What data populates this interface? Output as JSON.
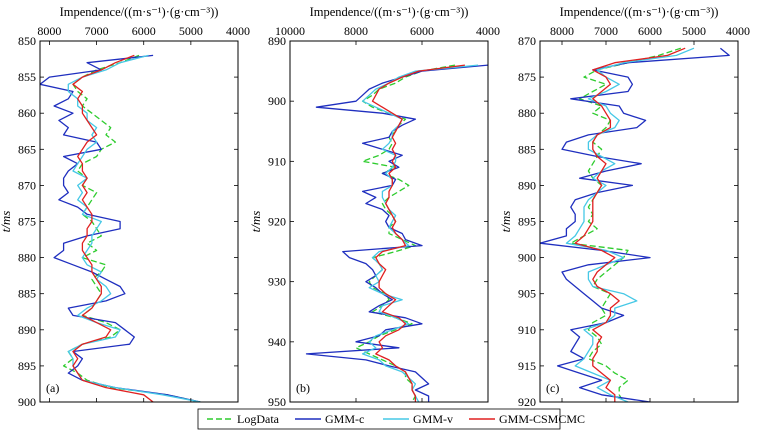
{
  "legend": [
    {
      "label": "LogData",
      "color": "#2ecc2e",
      "dash": "6,3",
      "width": 1.3
    },
    {
      "label": "GMM-c",
      "color": "#1f2fbf",
      "dash": "",
      "width": 1.3
    },
    {
      "label": "GMM-v",
      "color": "#46c8e6",
      "dash": "",
      "width": 1.3
    },
    {
      "label": "GMM-CSMCMC",
      "color": "#e02020",
      "dash": "",
      "width": 1.3
    }
  ],
  "chart_data": [
    {
      "type": "line",
      "panel_label": "(a)",
      "title": "Impendence/((m·s⁻¹)·(g·cm⁻³))",
      "ylabel": "t/ms",
      "xlim": [
        8200,
        4000
      ],
      "xticks": [
        8000,
        7000,
        6000,
        5000,
        4000
      ],
      "ylim": [
        850,
        900
      ],
      "yticks": [
        850,
        855,
        860,
        865,
        870,
        875,
        880,
        885,
        890,
        895,
        900
      ],
      "t": [
        852,
        853,
        854,
        855,
        856,
        857,
        858,
        859,
        860,
        861,
        862,
        863,
        864,
        865,
        866,
        867,
        868,
        869,
        870,
        871,
        872,
        873,
        874,
        875,
        876,
        877,
        878,
        879,
        880,
        881,
        882,
        883,
        884,
        885,
        886,
        887,
        888,
        889,
        890,
        891,
        892,
        893,
        894,
        895,
        896,
        897,
        898,
        899,
        900
      ],
      "series": [
        {
          "name": "LogData",
          "values": [
            6100,
            6500,
            7000,
            7300,
            7500,
            7400,
            7200,
            7300,
            7100,
            6900,
            6700,
            6800,
            6600,
            6900,
            7000,
            7300,
            7400,
            7200,
            7300,
            7000,
            7100,
            7200,
            7300,
            7100,
            7000,
            6900,
            7200,
            7000,
            7300,
            6800,
            6900,
            7100,
            7000,
            6900,
            7000,
            7100,
            7300,
            6800,
            6500,
            6700,
            7300,
            7600,
            7500,
            7700,
            7400,
            7200,
            6700,
            5500,
            4800
          ]
        },
        {
          "name": "GMM-c",
          "values": [
            5800,
            7200,
            6900,
            8000,
            8200,
            7500,
            7600,
            7900,
            7500,
            7800,
            7600,
            7700,
            7000,
            6900,
            7700,
            7400,
            7600,
            7700,
            7700,
            7600,
            7800,
            7400,
            7200,
            6500,
            6500,
            7200,
            7700,
            7700,
            7900,
            7500,
            7100,
            6800,
            6500,
            6400,
            6800,
            7600,
            7500,
            6600,
            6400,
            6200,
            6300,
            7500,
            7300,
            7400,
            7600,
            7300,
            6600,
            5500,
            4800
          ]
        },
        {
          "name": "GMM-v",
          "values": [
            5900,
            6500,
            6800,
            7300,
            7600,
            7600,
            7400,
            7400,
            7200,
            7200,
            7000,
            7100,
            7000,
            7200,
            7300,
            7400,
            7500,
            7200,
            7400,
            7300,
            7400,
            7200,
            7300,
            6900,
            7000,
            7100,
            7100,
            7200,
            7300,
            7200,
            6900,
            7000,
            6800,
            6700,
            6900,
            7200,
            7400,
            7000,
            6500,
            6600,
            7300,
            7600,
            7500,
            7500,
            7400,
            7300,
            6600,
            5600,
            4800
          ]
        },
        {
          "name": "GMM-CSMCMC",
          "values": [
            6200,
            6600,
            6900,
            7300,
            7500,
            7300,
            7400,
            7300,
            7300,
            7200,
            7100,
            7000,
            7200,
            7300,
            7400,
            7300,
            7300,
            7200,
            7300,
            7200,
            7300,
            7200,
            7100,
            7100,
            7200,
            7200,
            7300,
            7300,
            7200,
            7100,
            7100,
            7000,
            6900,
            6900,
            7000,
            7100,
            7300,
            7000,
            6700,
            6800,
            7300,
            7500,
            7400,
            7500,
            7400,
            7300,
            6800,
            6000,
            5800
          ]
        }
      ]
    },
    {
      "type": "line",
      "panel_label": "(b)",
      "title": "Impendence/((m·s⁻¹)·(g·cm⁻³))",
      "ylabel": "t/ms",
      "xlim": [
        10000,
        4000
      ],
      "xticks": [
        10000,
        8000,
        6000,
        4000
      ],
      "ylim": [
        890,
        950
      ],
      "yticks": [
        890,
        900,
        910,
        920,
        930,
        940,
        950
      ],
      "t": [
        894,
        895,
        896,
        897,
        898,
        899,
        900,
        901,
        902,
        903,
        904,
        905,
        906,
        907,
        908,
        909,
        910,
        911,
        912,
        913,
        914,
        915,
        916,
        917,
        918,
        919,
        920,
        921,
        922,
        923,
        924,
        925,
        926,
        927,
        928,
        929,
        930,
        931,
        932,
        933,
        934,
        935,
        936,
        937,
        938,
        939,
        940,
        941,
        942,
        943,
        944,
        945,
        946,
        947,
        948,
        949,
        950
      ],
      "series": [
        {
          "name": "LogData",
          "values": [
            5000,
            6000,
            6500,
            6800,
            7300,
            7500,
            7800,
            7500,
            7000,
            6500,
            6700,
            6800,
            7000,
            6900,
            7000,
            7300,
            7800,
            6800,
            7200,
            6700,
            6400,
            6700,
            7000,
            7200,
            7100,
            6900,
            6800,
            7000,
            7000,
            6600,
            6200,
            6800,
            7500,
            7300,
            7200,
            7400,
            7600,
            7500,
            7100,
            7000,
            7200,
            7500,
            6800,
            6300,
            6800,
            7300,
            7600,
            8000,
            7600,
            7200,
            6800,
            6500,
            6500,
            6300,
            6300,
            6200,
            6300
          ]
        },
        {
          "name": "GMM-c",
          "values": [
            4000,
            6000,
            6600,
            7200,
            7600,
            7800,
            8000,
            9200,
            7200,
            6200,
            6600,
            6900,
            7000,
            7800,
            7200,
            6600,
            7000,
            6700,
            7200,
            6800,
            6900,
            7800,
            7400,
            7700,
            7200,
            7000,
            7100,
            7000,
            6600,
            6500,
            6000,
            8400,
            8200,
            7700,
            7500,
            7400,
            7700,
            7400,
            7200,
            6900,
            7300,
            7600,
            6500,
            6000,
            7100,
            7300,
            8000,
            6700,
            9500,
            7700,
            7000,
            6200,
            6000,
            5800,
            6200,
            5800,
            5800
          ]
        },
        {
          "name": "GMM-v",
          "values": [
            4300,
            6200,
            6700,
            7000,
            7400,
            7600,
            7800,
            7400,
            7000,
            6600,
            6700,
            6900,
            6900,
            7000,
            7200,
            6800,
            6800,
            6900,
            7100,
            6900,
            6900,
            7200,
            7200,
            7100,
            7000,
            6800,
            6900,
            7000,
            6800,
            6600,
            6400,
            7300,
            7500,
            7300,
            7200,
            7400,
            7300,
            7600,
            7200,
            6600,
            7200,
            7300,
            6800,
            6400,
            6900,
            7400,
            7600,
            7400,
            7800,
            7300,
            7100,
            6600,
            6400,
            6200,
            6300,
            6200,
            6100
          ]
        },
        {
          "name": "GMM-CSMCMC",
          "values": [
            4700,
            6100,
            6600,
            7000,
            7300,
            7400,
            7500,
            7200,
            6900,
            6600,
            6700,
            6800,
            6900,
            6800,
            6900,
            6800,
            6900,
            6800,
            7000,
            6900,
            6900,
            7000,
            7000,
            7100,
            7000,
            6900,
            6800,
            6900,
            6800,
            6600,
            6500,
            7200,
            7400,
            7300,
            7100,
            7200,
            7300,
            7300,
            7100,
            6800,
            7000,
            7200,
            6700,
            6500,
            6700,
            7100,
            7300,
            7200,
            7400,
            7000,
            6800,
            6500,
            6400,
            6300,
            6300,
            6200,
            6200
          ]
        }
      ]
    },
    {
      "type": "line",
      "panel_label": "(c)",
      "title": "Impendence/((m·s⁻¹)·(g·cm⁻³))",
      "ylabel": "t/ms",
      "xlim": [
        8500,
        4000
      ],
      "xticks": [
        8000,
        7000,
        6000,
        5000,
        4000
      ],
      "ylim": [
        870,
        920
      ],
      "yticks": [
        870,
        875,
        880,
        885,
        890,
        895,
        900,
        905,
        910,
        915,
        920
      ],
      "t": [
        871,
        872,
        873,
        874,
        875,
        876,
        877,
        878,
        879,
        880,
        881,
        882,
        883,
        884,
        885,
        886,
        887,
        888,
        889,
        890,
        891,
        892,
        893,
        894,
        895,
        896,
        897,
        898,
        899,
        900,
        901,
        902,
        903,
        904,
        905,
        906,
        907,
        908,
        909,
        910,
        911,
        912,
        913,
        914,
        915,
        916,
        917,
        918,
        919,
        920
      ],
      "series": [
        {
          "name": "LogData",
          "values": [
            5300,
            5800,
            6500,
            7200,
            7500,
            7000,
            7300,
            7600,
            7100,
            7300,
            6900,
            7000,
            7200,
            7300,
            7100,
            7200,
            7300,
            7400,
            7300,
            7100,
            7200,
            7300,
            7400,
            7300,
            7400,
            7200,
            7500,
            7800,
            6500,
            6600,
            6800,
            7000,
            7200,
            7300,
            6900,
            7000,
            7100,
            7000,
            7300,
            7400,
            7200,
            7100,
            7300,
            7400,
            7000,
            6800,
            6500,
            6700,
            6700,
            6600
          ]
        },
        {
          "name": "GMM-c",
          "values": [
            4400,
            4200,
            6500,
            7300,
            6500,
            6400,
            6500,
            7800,
            6700,
            6600,
            6100,
            6300,
            7400,
            7900,
            8000,
            7200,
            6200,
            7000,
            7600,
            6400,
            7200,
            7700,
            7800,
            7700,
            7700,
            7900,
            7900,
            8500,
            7100,
            6000,
            7400,
            8000,
            7900,
            7700,
            7500,
            7300,
            7100,
            6600,
            7000,
            7800,
            7600,
            7700,
            7800,
            7500,
            8100,
            7600,
            7100,
            7600,
            7100,
            6000
          ]
        },
        {
          "name": "GMM-v",
          "values": [
            5000,
            5400,
            6600,
            7200,
            7000,
            6700,
            7000,
            7400,
            7000,
            6900,
            6700,
            6800,
            7200,
            7400,
            7400,
            7100,
            6800,
            7100,
            7300,
            7000,
            7200,
            7400,
            7500,
            7500,
            7500,
            7600,
            7700,
            7900,
            7000,
            6600,
            7000,
            7400,
            7400,
            7300,
            6600,
            6300,
            6800,
            6800,
            7000,
            7500,
            7300,
            7300,
            7400,
            7500,
            7700,
            7300,
            6900,
            7200,
            6900,
            6500
          ]
        },
        {
          "name": "GMM-CSMCMC",
          "values": [
            5200,
            5600,
            6800,
            7300,
            7000,
            6900,
            7100,
            7300,
            7100,
            7000,
            6900,
            6900,
            7200,
            7300,
            7300,
            7200,
            7000,
            7100,
            7200,
            7100,
            7200,
            7300,
            7300,
            7300,
            7300,
            7400,
            7500,
            7700,
            7100,
            6800,
            7000,
            7200,
            7300,
            7200,
            6900,
            6700,
            6900,
            6900,
            7000,
            7300,
            7100,
            7200,
            7200,
            7300,
            7300,
            7100,
            6900,
            7000,
            6800,
            6800
          ]
        }
      ]
    }
  ]
}
